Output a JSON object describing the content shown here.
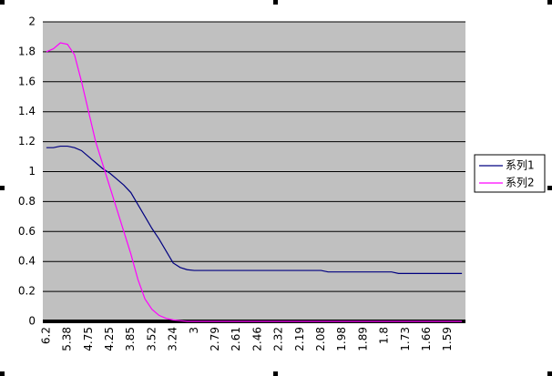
{
  "chart_data": {
    "type": "line",
    "categories": [
      "6.2",
      null,
      null,
      "5.38",
      null,
      null,
      "4.75",
      null,
      null,
      "4.25",
      null,
      null,
      "3.85",
      null,
      null,
      "3.52",
      null,
      null,
      "3.24",
      null,
      null,
      "3",
      null,
      null,
      "2.79",
      null,
      null,
      "2.61",
      null,
      null,
      "2.46",
      null,
      null,
      "2.32",
      null,
      null,
      "2.19",
      null,
      null,
      "2.08",
      null,
      null,
      "1.98",
      null,
      null,
      "1.89",
      null,
      null,
      "1.8",
      null,
      null,
      "1.73",
      null,
      null,
      "1.66",
      null,
      null,
      "1.59",
      null,
      null
    ],
    "series": [
      {
        "name": "系列1",
        "color": "#000080",
        "values": [
          1.16,
          1.16,
          1.17,
          1.17,
          1.16,
          1.14,
          1.1,
          1.06,
          1.02,
          0.99,
          0.95,
          0.91,
          0.86,
          0.78,
          0.7,
          0.62,
          0.55,
          0.47,
          0.39,
          0.36,
          0.345,
          0.34,
          0.34,
          0.34,
          0.34,
          0.34,
          0.34,
          0.34,
          0.34,
          0.34,
          0.34,
          0.34,
          0.34,
          0.34,
          0.34,
          0.34,
          0.34,
          0.34,
          0.34,
          0.34,
          0.33,
          0.33,
          0.33,
          0.33,
          0.33,
          0.33,
          0.33,
          0.33,
          0.33,
          0.33,
          0.32,
          0.32,
          0.32,
          0.32,
          0.32,
          0.32,
          0.32,
          0.32,
          0.32,
          0.32
        ]
      },
      {
        "name": "系列2",
        "color": "#ff00ff",
        "values": [
          1.8,
          1.82,
          1.86,
          1.85,
          1.78,
          1.6,
          1.4,
          1.2,
          1.05,
          0.9,
          0.75,
          0.6,
          0.45,
          0.28,
          0.15,
          0.08,
          0.04,
          0.02,
          0.01,
          0.005,
          0,
          0,
          0,
          0,
          0,
          0,
          0,
          0,
          0,
          0,
          0,
          0,
          0,
          0,
          0,
          0,
          0,
          0,
          0,
          0,
          0,
          0,
          0,
          0,
          0,
          0,
          0,
          0,
          0,
          0,
          0,
          0,
          0,
          0,
          0,
          0,
          0,
          0,
          0,
          0
        ]
      }
    ],
    "ylim": [
      0,
      2
    ],
    "yticks": [
      0,
      0.2,
      0.4,
      0.6,
      0.8,
      1,
      1.2,
      1.4,
      1.6,
      1.8,
      2
    ],
    "grid": true,
    "legend": "right"
  }
}
